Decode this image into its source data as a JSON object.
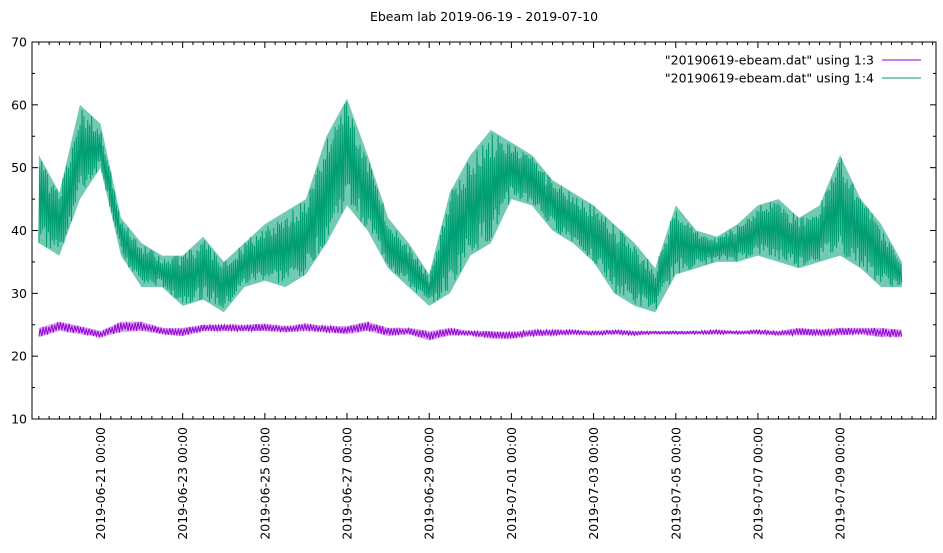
{
  "chart_data": {
    "type": "line",
    "title": "Ebeam lab 2019-06-19 - 2019-07-10",
    "xlabel": "",
    "ylabel": "",
    "ylim": [
      10,
      70
    ],
    "y_ticks": [
      10,
      20,
      30,
      40,
      50,
      60,
      70
    ],
    "xlim": [
      "2019-06-19 08:00",
      "2019-07-11 08:00"
    ],
    "x_ticks": [
      "2019-06-21 00:00",
      "2019-06-23 00:00",
      "2019-06-25 00:00",
      "2019-06-27 00:00",
      "2019-06-29 00:00",
      "2019-07-01 00:00",
      "2019-07-03 00:00",
      "2019-07-05 00:00",
      "2019-07-07 00:00",
      "2019-07-09 00:00"
    ],
    "grid": false,
    "legend_position": "top-right",
    "series": [
      {
        "name": "\"20190619-ebeam.dat\" using 1:3",
        "color": "#9400d3",
        "style": "thin band (small fluctuations)",
        "x": [
          "2019-06-19 12:00",
          "2019-06-20 00:00",
          "2019-06-20 12:00",
          "2019-06-21 00:00",
          "2019-06-21 12:00",
          "2019-06-22 00:00",
          "2019-06-22 12:00",
          "2019-06-23 00:00",
          "2019-06-23 12:00",
          "2019-06-24 00:00",
          "2019-06-24 12:00",
          "2019-06-25 00:00",
          "2019-06-25 12:00",
          "2019-06-26 00:00",
          "2019-06-26 12:00",
          "2019-06-27 00:00",
          "2019-06-27 12:00",
          "2019-06-28 00:00",
          "2019-06-28 12:00",
          "2019-06-29 00:00",
          "2019-06-29 12:00",
          "2019-06-30 00:00",
          "2019-06-30 12:00",
          "2019-07-01 00:00",
          "2019-07-01 12:00",
          "2019-07-02 00:00",
          "2019-07-02 12:00",
          "2019-07-03 00:00",
          "2019-07-03 12:00",
          "2019-07-04 00:00",
          "2019-07-04 12:00",
          "2019-07-05 00:00",
          "2019-07-05 12:00",
          "2019-07-06 00:00",
          "2019-07-06 12:00",
          "2019-07-07 00:00",
          "2019-07-07 12:00",
          "2019-07-08 00:00",
          "2019-07-08 12:00",
          "2019-07-09 00:00",
          "2019-07-09 12:00",
          "2019-07-10 00:00",
          "2019-07-10 12:00"
        ],
        "y_low": [
          23.0,
          24.0,
          23.5,
          23.0,
          23.8,
          24.0,
          23.5,
          23.2,
          24.0,
          24.0,
          24.0,
          24.0,
          23.8,
          24.0,
          23.8,
          23.5,
          24.0,
          23.2,
          23.5,
          22.5,
          23.3,
          23.3,
          22.8,
          22.8,
          23.2,
          23.3,
          23.5,
          23.3,
          23.5,
          23.3,
          23.5,
          23.5,
          23.5,
          23.5,
          23.5,
          23.5,
          23.3,
          23.3,
          23.3,
          23.3,
          23.5,
          23.0,
          23.0
        ],
        "y_high": [
          24.5,
          25.5,
          24.8,
          24.0,
          25.5,
          25.5,
          24.5,
          24.5,
          25.0,
          25.0,
          25.0,
          25.2,
          24.8,
          25.2,
          24.8,
          24.8,
          25.5,
          24.5,
          24.5,
          24.0,
          24.5,
          24.0,
          24.0,
          23.8,
          24.2,
          24.2,
          24.2,
          24.0,
          24.2,
          24.0,
          24.0,
          24.0,
          24.0,
          24.2,
          24.0,
          24.2,
          24.0,
          24.5,
          24.2,
          24.5,
          24.5,
          24.5,
          24.2
        ]
      },
      {
        "name": "\"20190619-ebeam.dat\" using 1:4",
        "color": "#009e73",
        "style": "dense oscillating band",
        "x": [
          "2019-06-19 12:00",
          "2019-06-20 00:00",
          "2019-06-20 12:00",
          "2019-06-21 00:00",
          "2019-06-21 12:00",
          "2019-06-22 00:00",
          "2019-06-22 12:00",
          "2019-06-23 00:00",
          "2019-06-23 12:00",
          "2019-06-24 00:00",
          "2019-06-24 12:00",
          "2019-06-25 00:00",
          "2019-06-25 12:00",
          "2019-06-26 00:00",
          "2019-06-26 12:00",
          "2019-06-27 00:00",
          "2019-06-27 12:00",
          "2019-06-28 00:00",
          "2019-06-28 12:00",
          "2019-06-29 00:00",
          "2019-06-29 12:00",
          "2019-06-30 00:00",
          "2019-06-30 12:00",
          "2019-07-01 00:00",
          "2019-07-01 12:00",
          "2019-07-02 00:00",
          "2019-07-02 12:00",
          "2019-07-03 00:00",
          "2019-07-03 12:00",
          "2019-07-04 00:00",
          "2019-07-04 12:00",
          "2019-07-05 00:00",
          "2019-07-05 12:00",
          "2019-07-06 00:00",
          "2019-07-06 12:00",
          "2019-07-07 00:00",
          "2019-07-07 12:00",
          "2019-07-08 00:00",
          "2019-07-08 12:00",
          "2019-07-09 00:00",
          "2019-07-09 12:00",
          "2019-07-10 00:00",
          "2019-07-10 12:00"
        ],
        "y_low": [
          38,
          36,
          45,
          50,
          36,
          31,
          31,
          28,
          29,
          27,
          31,
          32,
          31,
          33,
          38,
          44,
          40,
          34,
          31,
          28,
          30,
          36,
          38,
          45,
          44,
          40,
          38,
          35,
          30,
          28,
          27,
          33,
          34,
          35,
          35,
          36,
          35,
          34,
          35,
          36,
          34,
          31,
          31
        ],
        "y_high": [
          52,
          46,
          60,
          57,
          42,
          38,
          36,
          36,
          39,
          35,
          38,
          41,
          43,
          45,
          55,
          61,
          52,
          42,
          38,
          33,
          46,
          52,
          56,
          54,
          52,
          48,
          46,
          44,
          41,
          38,
          34,
          44,
          40,
          39,
          41,
          44,
          45,
          42,
          44,
          52,
          45,
          41,
          35
        ]
      }
    ]
  }
}
